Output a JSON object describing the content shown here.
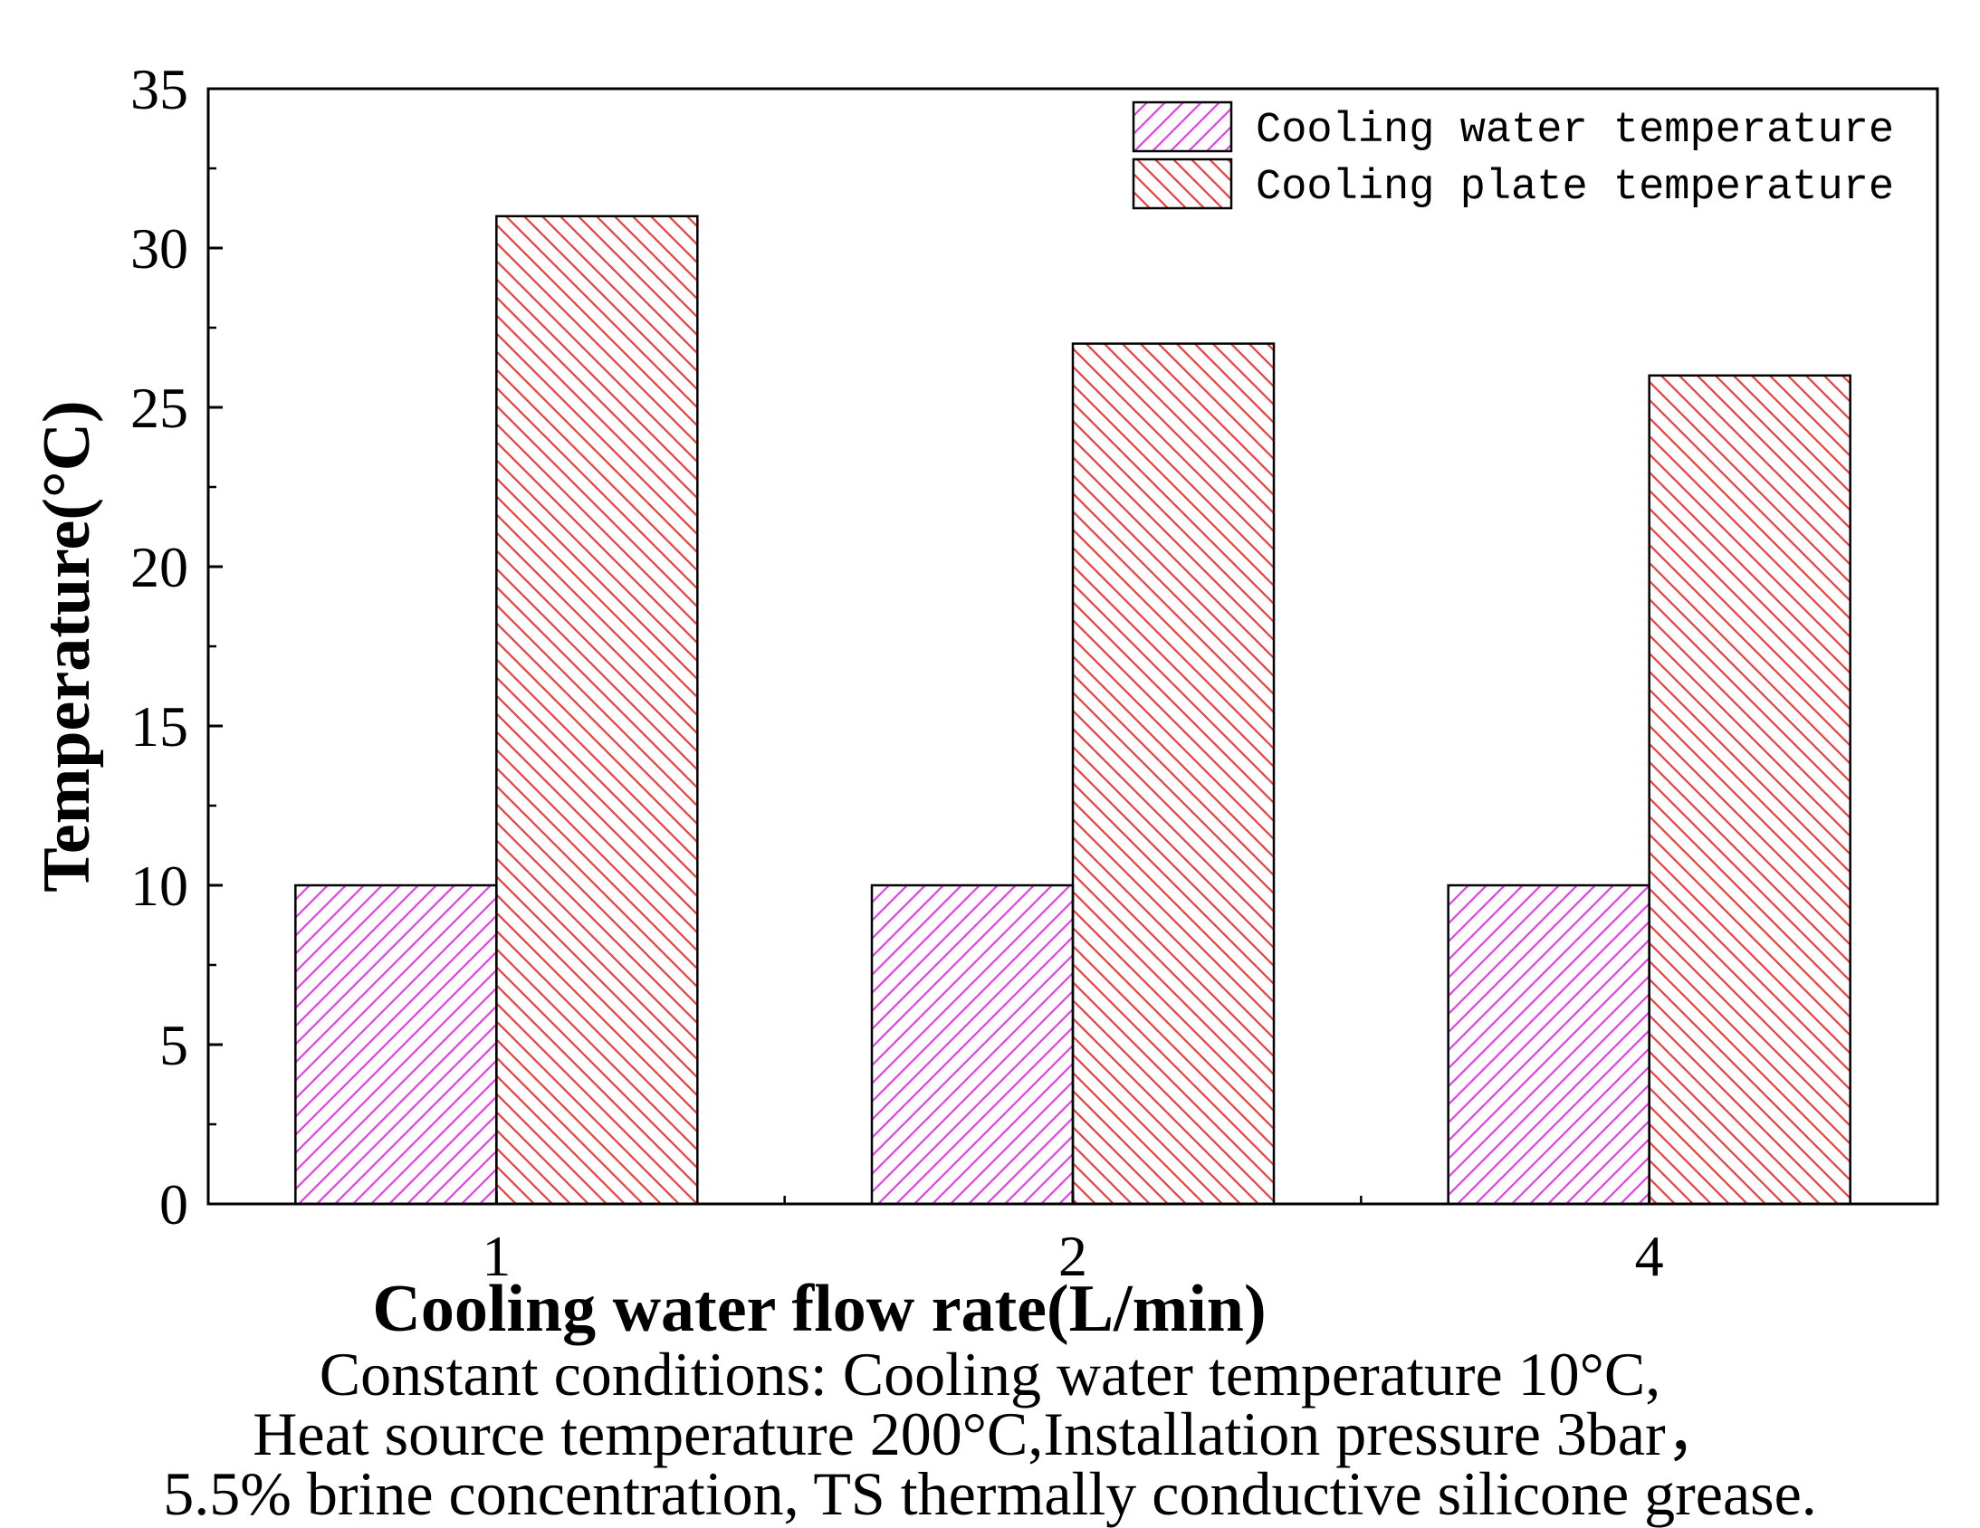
{
  "chart_data": {
    "type": "bar",
    "title": "",
    "xlabel": "Cooling water flow rate(L/min)",
    "ylabel": "Temperature(°C)",
    "categories": [
      "1",
      "2",
      "4"
    ],
    "ylim": [
      0,
      35
    ],
    "yticks": [
      "0",
      "5",
      "10",
      "15",
      "20",
      "25",
      "30",
      "35"
    ],
    "grid": false,
    "legend_position": "top-right",
    "series": [
      {
        "name": "Cooling water temperature",
        "values": [
          10,
          10,
          10
        ],
        "color": "#e83ee8",
        "hatch": "diagonal-up"
      },
      {
        "name": "Cooling plate temperature",
        "values": [
          31,
          27,
          26
        ],
        "color": "#f23c3c",
        "hatch": "diagonal-down"
      }
    ]
  },
  "caption": {
    "line1": "Constant conditions: Cooling water temperature 10°C,",
    "line2": "Heat source temperature 200°C,Installation pressure 3bar，",
    "line3": "5.5% brine concentration, TS thermally conductive silicone grease."
  }
}
